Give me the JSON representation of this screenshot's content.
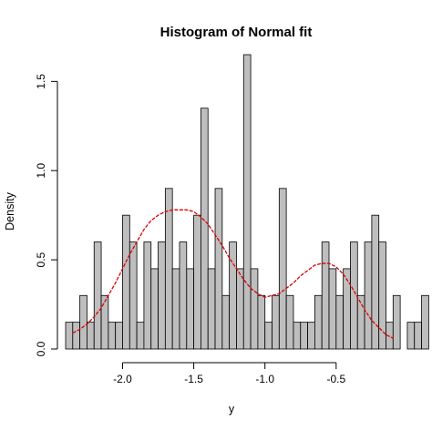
{
  "chart_data": {
    "type": "bar",
    "title": "Histogram of Normal fit",
    "xlabel": "y",
    "ylabel": "Density",
    "xlim": [
      -2.4,
      -0.07
    ],
    "ylim": [
      0,
      1.65
    ],
    "x_ticks": [
      -2.0,
      -1.5,
      -1.0,
      -0.5
    ],
    "x_tick_labels": [
      "-2.0",
      "-1.5",
      "-1.0",
      "-0.5"
    ],
    "y_ticks": [
      0.0,
      0.5,
      1.0,
      1.5
    ],
    "y_tick_labels": [
      "0.0",
      "0.5",
      "1.0",
      "1.5"
    ],
    "grid": false,
    "legend": "none",
    "bin_start": -2.4,
    "bin_width": 0.05,
    "bar_color": "#bebebe",
    "bar_edge_color": "#000000",
    "series": [
      {
        "kind": "histogram",
        "values": [
          0.15,
          0.15,
          0.3,
          0.15,
          0.6,
          0.3,
          0.15,
          0.15,
          0.75,
          0.6,
          0.15,
          0.6,
          0.45,
          0.6,
          0.9,
          0.45,
          0.6,
          0.45,
          0.75,
          1.35,
          0.45,
          0.9,
          0.3,
          0.6,
          0.45,
          1.65,
          0.45,
          0.3,
          0.15,
          0.3,
          0.9,
          0.3,
          0.15,
          0.15,
          0.15,
          0.3,
          0.6,
          0.45,
          0.3,
          0.45,
          0.6,
          0.3,
          0.6,
          0.75,
          0.6,
          0.15,
          0.3,
          0.0,
          0.15,
          0.15,
          0.3
        ]
      },
      {
        "kind": "density-line",
        "color": "#dd0000",
        "x": [
          -2.35,
          -2.3,
          -2.25,
          -2.2,
          -2.15,
          -2.1,
          -2.05,
          -2.0,
          -1.95,
          -1.9,
          -1.85,
          -1.8,
          -1.75,
          -1.7,
          -1.65,
          -1.6,
          -1.55,
          -1.5,
          -1.45,
          -1.4,
          -1.35,
          -1.3,
          -1.25,
          -1.2,
          -1.15,
          -1.1,
          -1.05,
          -1.0,
          -0.95,
          -0.9,
          -0.85,
          -0.8,
          -0.75,
          -0.7,
          -0.65,
          -0.6,
          -0.55,
          -0.5,
          -0.45,
          -0.4,
          -0.35,
          -0.3,
          -0.25,
          -0.2,
          -0.15,
          -0.1
        ],
        "y": [
          0.09,
          0.11,
          0.14,
          0.18,
          0.23,
          0.3,
          0.37,
          0.45,
          0.53,
          0.6,
          0.67,
          0.72,
          0.75,
          0.77,
          0.78,
          0.78,
          0.78,
          0.77,
          0.74,
          0.7,
          0.64,
          0.58,
          0.51,
          0.45,
          0.39,
          0.34,
          0.31,
          0.29,
          0.3,
          0.31,
          0.34,
          0.37,
          0.41,
          0.44,
          0.47,
          0.48,
          0.48,
          0.46,
          0.42,
          0.36,
          0.29,
          0.22,
          0.16,
          0.12,
          0.08,
          0.06
        ]
      }
    ]
  }
}
